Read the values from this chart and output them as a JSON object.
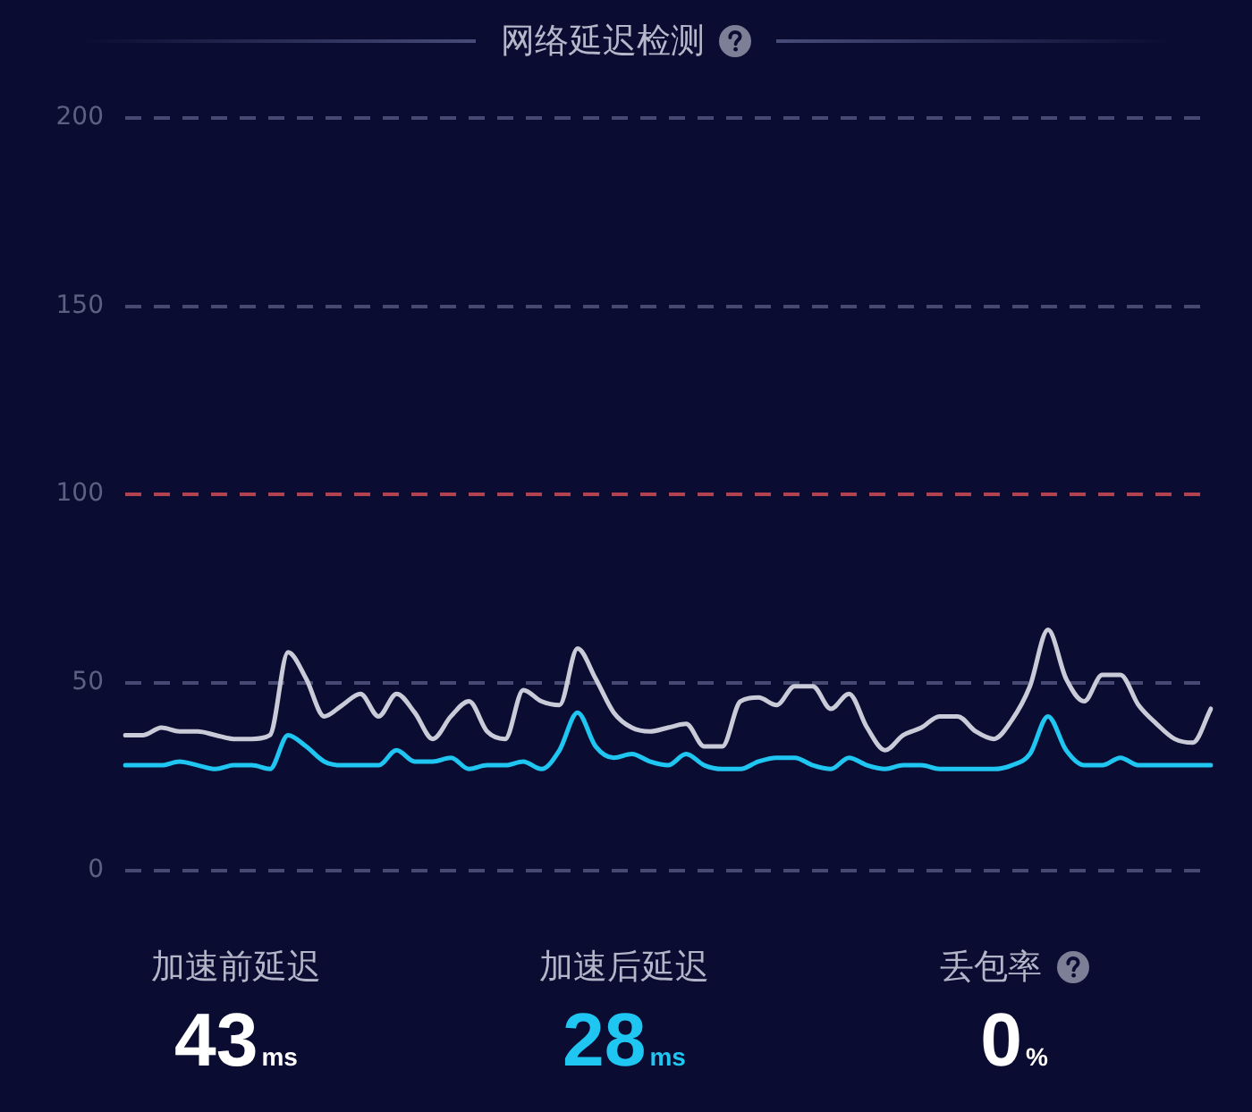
{
  "chart_data": {
    "type": "line",
    "title": "网络延迟检测",
    "categories": [
      null,
      null,
      null,
      null,
      null,
      null,
      null,
      null,
      null,
      null,
      null,
      null,
      null,
      null,
      null,
      null,
      null,
      null,
      null,
      null,
      null,
      null,
      null,
      null,
      null,
      null,
      null,
      null,
      null,
      null,
      null,
      null,
      null,
      null,
      null,
      null,
      null,
      null,
      null,
      null,
      null,
      null,
      null,
      null,
      null,
      null,
      null,
      null,
      null,
      null,
      null,
      null,
      null,
      null,
      null,
      null,
      null,
      null,
      null,
      null,
      null
    ],
    "series": [
      {
        "color": "#cacbd8",
        "values": [
          36,
          36,
          38,
          37,
          37,
          36,
          35,
          35,
          36,
          58,
          51,
          41,
          44,
          47,
          41,
          47,
          42,
          35,
          41,
          45,
          37,
          35,
          48,
          45,
          44,
          59,
          51,
          42,
          38,
          37,
          38,
          39,
          33,
          33,
          45,
          46,
          44,
          49,
          49,
          43,
          47,
          38,
          32,
          36,
          38,
          41,
          41,
          37,
          35,
          40,
          49,
          64,
          51,
          45,
          52,
          52,
          44,
          39,
          35,
          34,
          43
        ]
      },
      {
        "color": "#1fc6f2",
        "values": [
          28,
          28,
          28,
          29,
          28,
          27,
          28,
          28,
          27,
          36,
          33,
          29,
          28,
          28,
          28,
          32,
          29,
          29,
          30,
          27,
          28,
          28,
          29,
          27,
          32,
          42,
          33,
          30,
          31,
          29,
          28,
          31,
          28,
          27,
          27,
          29,
          30,
          30,
          28,
          27,
          30,
          28,
          27,
          28,
          28,
          27,
          27,
          27,
          27,
          28,
          31,
          41,
          32,
          28,
          28,
          30,
          28,
          28,
          28,
          28,
          28
        ]
      }
    ],
    "ylim": [
      0,
      200
    ],
    "yticks": [
      0,
      50,
      100,
      150,
      200
    ],
    "grid": "y",
    "tick_labels": "y",
    "marker": "none",
    "line_style": "solid",
    "ref_lines": [
      {
        "axis": "y",
        "value": 100,
        "color": "#b3414f",
        "line_style": "dashed"
      }
    ],
    "annotations": [
      "加速前延迟",
      "43ms",
      "加速后延迟",
      "28ms",
      "丢包率",
      "0%"
    ]
  }
}
